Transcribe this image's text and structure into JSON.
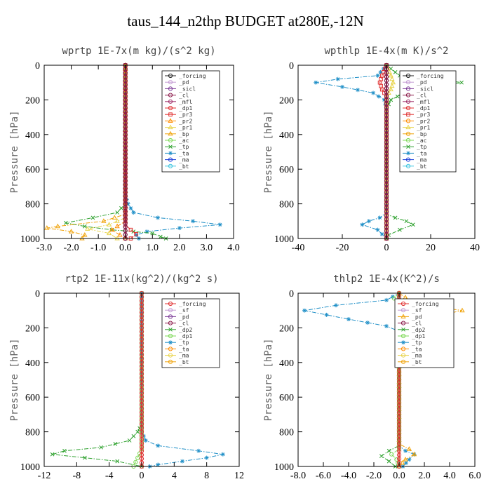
{
  "figure": {
    "title": "taus_144_n2thp  BUDGET at280E,-12N"
  },
  "chart_data": [
    {
      "type": "line",
      "title": "wprtp  1E-7x(m kg)/(s^2 kg)",
      "ylabel": "Pressure [hPa]",
      "xlim": [
        -3.0,
        4.0
      ],
      "ylim": [
        1000,
        0
      ],
      "xticks": [
        "-3.0",
        "-2.0",
        "-1.0",
        "0.0",
        "1.0",
        "2.0",
        "3.0",
        "4.0"
      ],
      "yticks": [
        "0",
        "200",
        "400",
        "600",
        "800",
        "1000"
      ],
      "legend": [
        "_forcing",
        "_pd",
        "_sicl",
        "_cl",
        "_mfl",
        "_dp1",
        "_pr3",
        "_pr2",
        "_pr1",
        "_bp",
        "_ac",
        "_tp",
        "_ta",
        "_ma",
        "_bt"
      ],
      "series": [
        {
          "name": "_ta",
          "color": "#1f8fc7",
          "style": "dashdot",
          "marker": "*",
          "points": [
            [
              0,
              0
            ],
            [
              0,
              750
            ],
            [
              0.1,
              800
            ],
            [
              0.3,
              850
            ],
            [
              1.2,
              880
            ],
            [
              2.5,
              900
            ],
            [
              3.5,
              920
            ],
            [
              2.0,
              940
            ],
            [
              0.8,
              960
            ],
            [
              0.4,
              980
            ],
            [
              0.5,
              1000
            ]
          ]
        },
        {
          "name": "_tp",
          "color": "#2ca02c",
          "style": "dashdot",
          "marker": "x",
          "points": [
            [
              0,
              0
            ],
            [
              0,
              800
            ],
            [
              -0.3,
              850
            ],
            [
              -1.2,
              880
            ],
            [
              -2.2,
              910
            ],
            [
              -1.5,
              930
            ],
            [
              -0.5,
              950
            ],
            [
              0.3,
              960
            ],
            [
              1.0,
              970
            ],
            [
              1.3,
              990
            ],
            [
              1.5,
              1000
            ]
          ]
        },
        {
          "name": "_bp",
          "color": "#f0a30a",
          "style": "dashdot",
          "marker": "^",
          "points": [
            [
              0,
              0
            ],
            [
              0,
              860
            ],
            [
              -0.8,
              900
            ],
            [
              -2.5,
              930
            ],
            [
              -2.9,
              940
            ],
            [
              -2.0,
              960
            ],
            [
              -1.5,
              980
            ],
            [
              -1.6,
              1000
            ]
          ]
        },
        {
          "name": "_pr1",
          "color": "#e8d44d",
          "style": "dashdot",
          "marker": "^",
          "points": [
            [
              0,
              0
            ],
            [
              0,
              880
            ],
            [
              -0.6,
              920
            ],
            [
              -1.4,
              945
            ],
            [
              -0.6,
              970
            ],
            [
              -0.3,
              1000
            ]
          ]
        },
        {
          "name": "_pr2",
          "color": "#ff8c00",
          "style": "dashdot",
          "marker": "^",
          "points": [
            [
              0,
              0
            ],
            [
              0,
              900
            ],
            [
              -0.3,
              930
            ],
            [
              -0.5,
              950
            ],
            [
              -0.2,
              980
            ],
            [
              0,
              1000
            ]
          ]
        },
        {
          "name": "_pr3",
          "color": "#e03030",
          "style": "dashdot",
          "marker": "s",
          "points": [
            [
              0,
              0
            ],
            [
              0,
              920
            ],
            [
              0.2,
              950
            ],
            [
              0.4,
              975
            ],
            [
              0.2,
              1000
            ]
          ]
        },
        {
          "name": "_forcing",
          "color": "#222222",
          "style": "solid",
          "marker": "o",
          "points": [
            [
              0,
              0
            ],
            [
              0,
              1000
            ]
          ]
        },
        {
          "name": "_cl",
          "color": "#8b1a4a",
          "style": "solid",
          "marker": "o",
          "points": [
            [
              0,
              0
            ],
            [
              0,
              1000
            ]
          ]
        }
      ]
    },
    {
      "type": "line",
      "title": "wpthlp  1E-4x(m K)/s^2",
      "ylabel": "Pressure [hPa]",
      "xlim": [
        -40,
        40
      ],
      "ylim": [
        1000,
        0
      ],
      "xticks": [
        "-40",
        "-20",
        "0",
        "20",
        "40"
      ],
      "yticks": [
        "0",
        "200",
        "400",
        "600",
        "800",
        "1000"
      ],
      "legend": [
        "_forcing",
        "_pd",
        "_sicl",
        "_cl",
        "_mfl",
        "_dp1",
        "_pr3",
        "_pr2",
        "_pr1",
        "_bp",
        "_ac",
        "_tp",
        "_ta",
        "_ma",
        "_bt"
      ],
      "series": [
        {
          "name": "_ta",
          "color": "#1f8fc7",
          "style": "dashdot",
          "marker": "*",
          "points": [
            [
              0,
              0
            ],
            [
              -4,
              60
            ],
            [
              -22,
              80
            ],
            [
              -32,
              100
            ],
            [
              -20,
              125
            ],
            [
              -6,
              160
            ],
            [
              -1,
              200
            ],
            [
              0,
              250
            ],
            [
              0,
              850
            ],
            [
              -3,
              880
            ],
            [
              -8,
              900
            ],
            [
              -11,
              920
            ],
            [
              -4,
              950
            ],
            [
              0,
              1000
            ]
          ]
        },
        {
          "name": "_tp",
          "color": "#2ca02c",
          "style": "dashdot",
          "marker": "x",
          "points": [
            [
              0,
              0
            ],
            [
              6,
              60
            ],
            [
              22,
              80
            ],
            [
              34,
              100
            ],
            [
              20,
              130
            ],
            [
              8,
              160
            ],
            [
              2,
              200
            ],
            [
              0,
              250
            ],
            [
              0,
              860
            ],
            [
              4,
              880
            ],
            [
              9,
              900
            ],
            [
              12,
              920
            ],
            [
              6,
              950
            ],
            [
              1,
              980
            ],
            [
              0,
              1000
            ]
          ]
        },
        {
          "name": "_pr1",
          "color": "#e8d44d",
          "style": "dashdot",
          "marker": "^",
          "points": [
            [
              0,
              0
            ],
            [
              2,
              60
            ],
            [
              3,
              100
            ],
            [
              2,
              140
            ],
            [
              0,
              180
            ],
            [
              0,
              1000
            ]
          ]
        },
        {
          "name": "_pr3",
          "color": "#e03030",
          "style": "dashdot",
          "marker": "s",
          "points": [
            [
              0,
              0
            ],
            [
              -2,
              60
            ],
            [
              -3,
              100
            ],
            [
              -2,
              140
            ],
            [
              0,
              180
            ],
            [
              0,
              1000
            ]
          ]
        },
        {
          "name": "_forcing",
          "color": "#222222",
          "style": "solid",
          "marker": "o",
          "points": [
            [
              0,
              0
            ],
            [
              0,
              1000
            ]
          ]
        },
        {
          "name": "_cl",
          "color": "#8b1a4a",
          "style": "solid",
          "marker": "o",
          "points": [
            [
              0,
              0
            ],
            [
              0,
              1000
            ]
          ]
        }
      ]
    },
    {
      "type": "line",
      "title": "rtp2  1E-11x(kg^2)/(kg^2 s)",
      "ylabel": "Pressure [hPa]",
      "xlim": [
        -12,
        12
      ],
      "ylim": [
        1000,
        0
      ],
      "xticks": [
        "-12",
        "-8",
        "-4",
        "0",
        "4",
        "8",
        "12"
      ],
      "yticks": [
        "0",
        "200",
        "400",
        "600",
        "800",
        "1000"
      ],
      "legend": [
        "_forcing",
        "_sf",
        "_pd",
        "_cl",
        "_dp2",
        "_dp1",
        "_tp",
        "_ta",
        "_ma",
        "_bt"
      ],
      "series": [
        {
          "name": "_dp2",
          "color": "#2ca02c",
          "style": "dashdot",
          "marker": "x",
          "points": [
            [
              0,
              0
            ],
            [
              0,
              760
            ],
            [
              -0.5,
              800
            ],
            [
              -1.5,
              850
            ],
            [
              -5,
              890
            ],
            [
              -9.5,
              910
            ],
            [
              -11,
              930
            ],
            [
              -7,
              950
            ],
            [
              -3,
              970
            ],
            [
              0,
              1000
            ]
          ]
        },
        {
          "name": "_tp",
          "color": "#1f8fc7",
          "style": "dashdot",
          "marker": "*",
          "points": [
            [
              0,
              0
            ],
            [
              0,
              800
            ],
            [
              0.5,
              850
            ],
            [
              2,
              880
            ],
            [
              7,
              910
            ],
            [
              10,
              930
            ],
            [
              8,
              950
            ],
            [
              5,
              970
            ],
            [
              2,
              990
            ],
            [
              1,
              1000
            ]
          ]
        },
        {
          "name": "_dp1",
          "color": "#7ed957",
          "style": "dashdot",
          "marker": "o",
          "points": [
            [
              0,
              0
            ],
            [
              0,
              900
            ],
            [
              -0.5,
              950
            ],
            [
              -1,
              1000
            ]
          ]
        },
        {
          "name": "_forcing",
          "color": "#e03030",
          "style": "solid",
          "marker": "o",
          "points": [
            [
              0,
              0
            ],
            [
              0,
              1000
            ]
          ]
        }
      ]
    },
    {
      "type": "line",
      "title": "thlp2  1E-4x(K^2)/s",
      "ylabel": "Pressure [hPa]",
      "xlim": [
        -8.0,
        6.0
      ],
      "ylim": [
        1000,
        0
      ],
      "xticks": [
        "-8.0",
        "-6.0",
        "-4.0",
        "-2.0",
        "0.0",
        "2.0",
        "4.0",
        "6.0"
      ],
      "yticks": [
        "0",
        "200",
        "400",
        "600",
        "800",
        "1000"
      ],
      "legend": [
        "_forcing",
        "_sf",
        "_pd",
        "_cl",
        "_dp2",
        "_dp1",
        "_tp",
        "_ta",
        "_ma",
        "_bt"
      ],
      "series": [
        {
          "name": "_tp",
          "color": "#1f8fc7",
          "style": "dashdot",
          "marker": "*",
          "points": [
            [
              0,
              0
            ],
            [
              -1,
              40
            ],
            [
              -5,
              70
            ],
            [
              -7.5,
              100
            ],
            [
              -4,
              150
            ],
            [
              -1,
              190
            ],
            [
              0,
              220
            ],
            [
              0,
              880
            ],
            [
              0.5,
              910
            ],
            [
              1.2,
              930
            ],
            [
              0.8,
              960
            ],
            [
              0.3,
              1000
            ]
          ]
        },
        {
          "name": "_pd",
          "color": "#f0a30a",
          "style": "dashdot",
          "marker": "^",
          "points": [
            [
              0,
              0
            ],
            [
              1,
              50
            ],
            [
              3,
              80
            ],
            [
              5,
              100
            ],
            [
              3,
              130
            ],
            [
              1,
              170
            ],
            [
              0,
              200
            ],
            [
              0,
              870
            ],
            [
              0.8,
              900
            ],
            [
              1.2,
              930
            ],
            [
              0.5,
              960
            ],
            [
              0,
              1000
            ]
          ]
        },
        {
          "name": "_dp2",
          "color": "#2ca02c",
          "style": "dashdot",
          "marker": "x",
          "points": [
            [
              0,
              0
            ],
            [
              0,
              880
            ],
            [
              -0.8,
              910
            ],
            [
              -1.4,
              940
            ],
            [
              -0.8,
              970
            ],
            [
              -0.3,
              1000
            ]
          ]
        },
        {
          "name": "_dp1",
          "color": "#7ed957",
          "style": "dashdot",
          "marker": "o",
          "points": [
            [
              0,
              0
            ],
            [
              -0.4,
              30
            ],
            [
              0,
              60
            ],
            [
              0,
              900
            ],
            [
              -0.6,
              930
            ],
            [
              -0.2,
              960
            ],
            [
              0,
              1000
            ]
          ]
        },
        {
          "name": "_forcing",
          "color": "#e03030",
          "style": "solid",
          "marker": "o",
          "points": [
            [
              0,
              0
            ],
            [
              0,
              1000
            ]
          ]
        }
      ]
    }
  ]
}
